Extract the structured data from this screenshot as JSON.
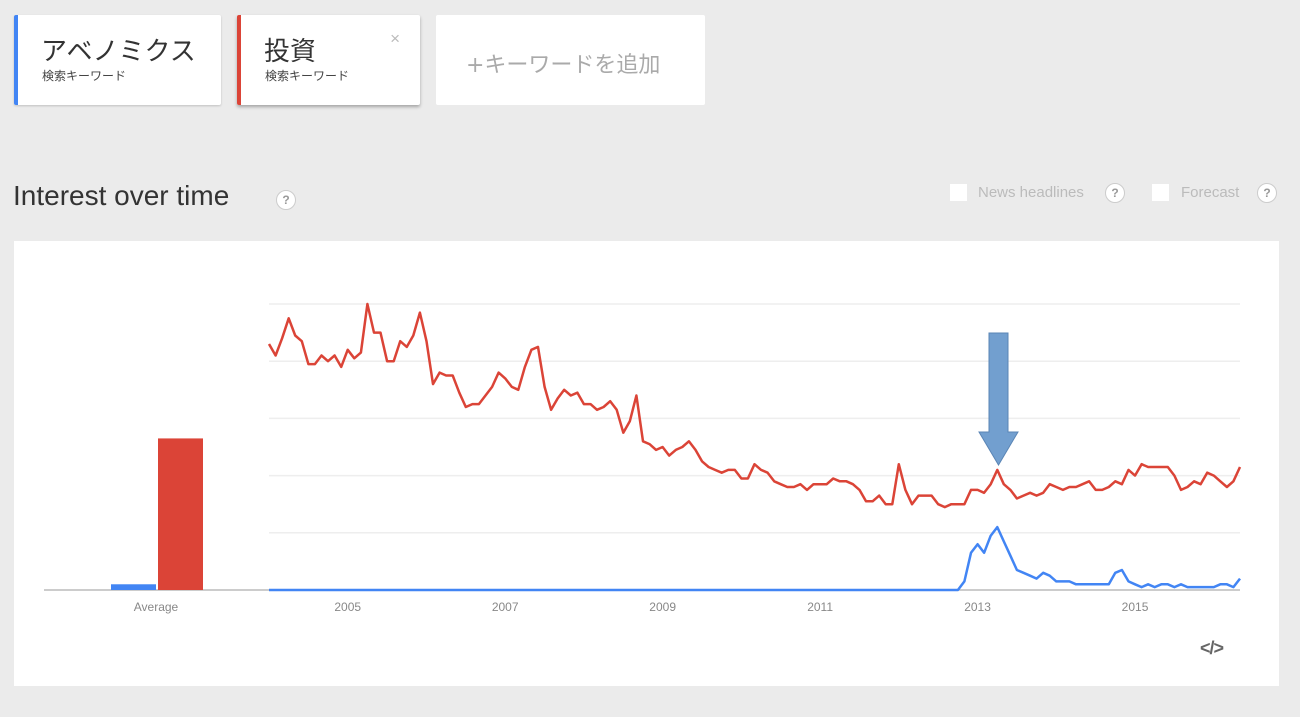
{
  "terms": [
    {
      "label": "アベノミクス",
      "sublabel": "検索キーワード",
      "color": "#4285f4"
    },
    {
      "label": "投資",
      "sublabel": "検索キーワード",
      "color": "#db4437",
      "close_label": "×"
    }
  ],
  "add_keyword_label": "+キーワードを追加",
  "section_title": "Interest over time",
  "help_label": "?",
  "options": [
    {
      "label": "News headlines",
      "checked": false
    },
    {
      "label": "Forecast",
      "checked": false
    }
  ],
  "embed_label": "</>",
  "chart_data": {
    "type": "line",
    "title": "Interest over time",
    "x_start": "2004-01",
    "x_step": "month",
    "xticks": [
      "2005",
      "2007",
      "2009",
      "2011",
      "2013",
      "2015"
    ],
    "ylim": [
      0,
      100
    ],
    "grid": true,
    "average": {
      "label": "Average",
      "values": [
        2,
        53
      ]
    },
    "annotation": "down-arrow pointing to 2013 peak",
    "series": [
      {
        "name": "投資",
        "color": "#db4437",
        "values": [
          86,
          82,
          88,
          95,
          89,
          87,
          79,
          79,
          82,
          80,
          82,
          78,
          84,
          81,
          83,
          100,
          90,
          90,
          80,
          80,
          87,
          85,
          89,
          97,
          87,
          72,
          76,
          75,
          75,
          69,
          64,
          65,
          65,
          68,
          71,
          76,
          74,
          71,
          70,
          78,
          84,
          85,
          71,
          63,
          67,
          70,
          68,
          69,
          65,
          65,
          63,
          64,
          66,
          63,
          55,
          59,
          68,
          52,
          51,
          49,
          50,
          47,
          49,
          50,
          52,
          49,
          45,
          43,
          42,
          41,
          42,
          42,
          39,
          39,
          44,
          42,
          41,
          38,
          37,
          36,
          36,
          37,
          35,
          37,
          37,
          37,
          39,
          38,
          38,
          37,
          35,
          31,
          31,
          33,
          30,
          30,
          44,
          35,
          30,
          33,
          33,
          33,
          30,
          29,
          30,
          30,
          30,
          35,
          35,
          34,
          37,
          42,
          37,
          35,
          32,
          33,
          34,
          33,
          34,
          37,
          36,
          35,
          36,
          36,
          37,
          38,
          35,
          35,
          36,
          38,
          37,
          42,
          40,
          44,
          43,
          43,
          43,
          43,
          40,
          35,
          36,
          38,
          37,
          41,
          40,
          38,
          36,
          38,
          43
        ]
      },
      {
        "name": "アベノミクス",
        "color": "#4285f4",
        "values": [
          0,
          0,
          0,
          0,
          0,
          0,
          0,
          0,
          0,
          0,
          0,
          0,
          0,
          0,
          0,
          0,
          0,
          0,
          0,
          0,
          0,
          0,
          0,
          0,
          0,
          0,
          0,
          0,
          0,
          0,
          0,
          0,
          0,
          0,
          0,
          0,
          0,
          0,
          0,
          0,
          0,
          0,
          0,
          0,
          0,
          0,
          0,
          0,
          0,
          0,
          0,
          0,
          0,
          0,
          0,
          0,
          0,
          0,
          0,
          0,
          0,
          0,
          0,
          0,
          0,
          0,
          0,
          0,
          0,
          0,
          0,
          0,
          0,
          0,
          0,
          0,
          0,
          0,
          0,
          0,
          0,
          0,
          0,
          0,
          0,
          0,
          0,
          0,
          0,
          0,
          0,
          0,
          0,
          0,
          0,
          0,
          0,
          0,
          0,
          0,
          0,
          0,
          0,
          0,
          0,
          0,
          3,
          13,
          16,
          13,
          19,
          22,
          17,
          12,
          7,
          6,
          5,
          4,
          6,
          5,
          3,
          3,
          3,
          2,
          2,
          2,
          2,
          2,
          2,
          6,
          7,
          3,
          2,
          1,
          2,
          1,
          2,
          2,
          1,
          2,
          1,
          1,
          1,
          1,
          1,
          2,
          2,
          1,
          4
        ]
      }
    ]
  }
}
